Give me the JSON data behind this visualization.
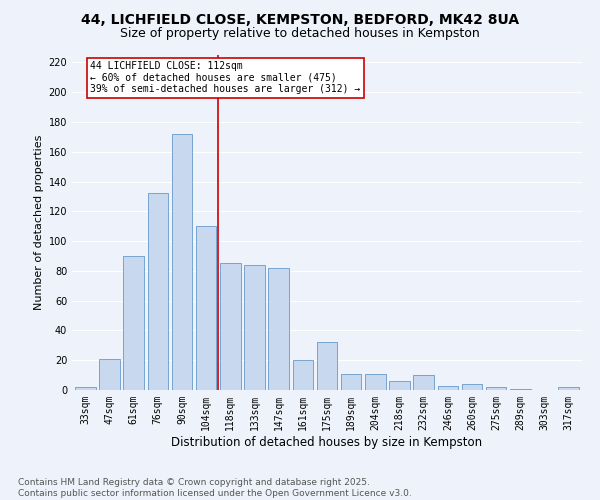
{
  "title": "44, LICHFIELD CLOSE, KEMPSTON, BEDFORD, MK42 8UA",
  "subtitle": "Size of property relative to detached houses in Kempston",
  "xlabel": "Distribution of detached houses by size in Kempston",
  "ylabel": "Number of detached properties",
  "categories": [
    "33sqm",
    "47sqm",
    "61sqm",
    "76sqm",
    "90sqm",
    "104sqm",
    "118sqm",
    "133sqm",
    "147sqm",
    "161sqm",
    "175sqm",
    "189sqm",
    "204sqm",
    "218sqm",
    "232sqm",
    "246sqm",
    "260sqm",
    "275sqm",
    "289sqm",
    "303sqm",
    "317sqm"
  ],
  "values": [
    2,
    21,
    90,
    132,
    172,
    110,
    85,
    84,
    82,
    20,
    32,
    11,
    11,
    6,
    10,
    3,
    4,
    2,
    1,
    0,
    2
  ],
  "bar_color": "#c8d9ef",
  "bar_edge_color": "#6699cc",
  "redline_index": 5.5,
  "annotation_title": "44 LICHFIELD CLOSE: 112sqm",
  "annotation_line1": "← 60% of detached houses are smaller (475)",
  "annotation_line2": "39% of semi-detached houses are larger (312) →",
  "annotation_box_color": "#ffffff",
  "annotation_box_edge": "#cc0000",
  "redline_color": "#cc0000",
  "footer_line1": "Contains HM Land Registry data © Crown copyright and database right 2025.",
  "footer_line2": "Contains public sector information licensed under the Open Government Licence v3.0.",
  "bg_color": "#eef2fa",
  "plot_bg_color": "#eef2fa",
  "grid_color": "#ffffff",
  "title_fontsize": 10,
  "subtitle_fontsize": 9,
  "ylabel_fontsize": 8,
  "xlabel_fontsize": 8.5,
  "tick_fontsize": 7,
  "annot_fontsize": 7,
  "footer_fontsize": 6.5,
  "ylim": [
    0,
    225
  ],
  "yticks": [
    0,
    20,
    40,
    60,
    80,
    100,
    120,
    140,
    160,
    180,
    200,
    220
  ]
}
